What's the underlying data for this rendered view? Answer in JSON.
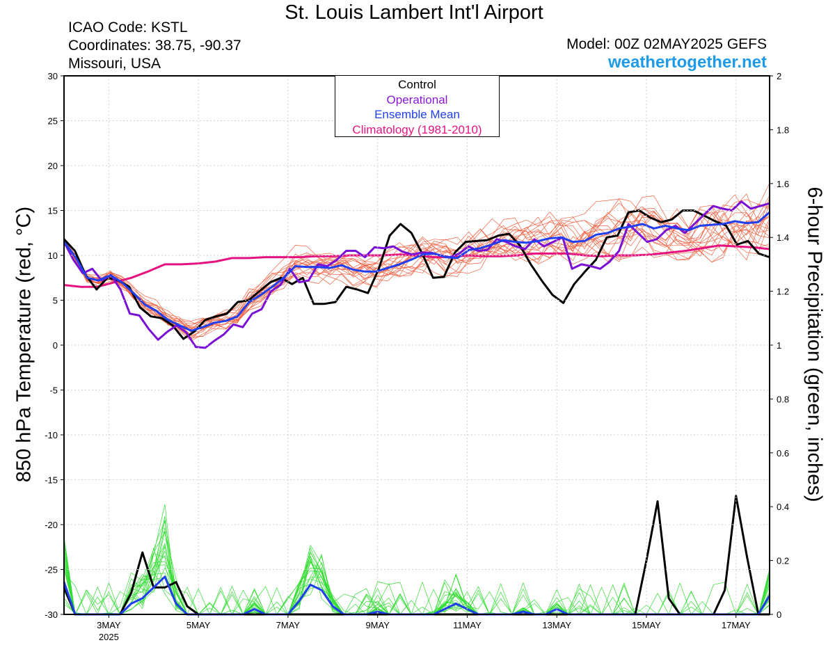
{
  "header": {
    "title": "St. Louis Lambert Int'l Airport",
    "icao": "ICAO Code: KSTL",
    "coords": "Coordinates: 38.75, -90.37",
    "region": "Missouri, USA",
    "model": "Model: 00Z 02MAY2025 GEFS",
    "site": "weathertogether.net"
  },
  "chart_data": {
    "type": "line",
    "ylabel": "850 hPa Temperature (red, °C)",
    "y2label": "6-hour Precipitation (green, inches)",
    "ylim": [
      -30,
      30
    ],
    "y2lim": [
      0,
      2
    ],
    "yticks": [
      "30",
      "25",
      "20",
      "15",
      "10",
      "5",
      "0",
      "-5",
      "-10",
      "-15",
      "-20",
      "-25",
      "-30"
    ],
    "y2ticks": [
      "2",
      "1.8",
      "1.6",
      "1.4",
      "1.2",
      "1",
      "0.8",
      "0.6",
      "0.4",
      "0.2",
      "0"
    ],
    "xlim": [
      0,
      63
    ],
    "xticks": [
      {
        "x": 4,
        "label": "3MAY",
        "sub": "2025"
      },
      {
        "x": 12,
        "label": "5MAY"
      },
      {
        "x": 20,
        "label": "7MAY"
      },
      {
        "x": 28,
        "label": "9MAY"
      },
      {
        "x": 36,
        "label": "11MAY"
      },
      {
        "x": 44,
        "label": "13MAY"
      },
      {
        "x": 52,
        "label": "15MAY"
      },
      {
        "x": 60,
        "label": "17MAY"
      }
    ],
    "legend": [
      "Control",
      "Operational",
      "Ensemble Mean",
      "Climatology (1981-2010)"
    ],
    "colors": {
      "control": "#000000",
      "operational": "#7a10d6",
      "mean": "#1f3ff0",
      "climatology": "#e6127f",
      "members_temp": "#f06040",
      "members_precip": "#33dd33"
    },
    "series": {
      "control_temp": [
        11.8,
        10.5,
        7.8,
        6.2,
        7.5,
        7.2,
        6.5,
        4.2,
        3.2,
        3.0,
        2.2,
        0.7,
        1.5,
        2.8,
        3.2,
        3.5,
        4.8,
        5.0,
        6.0,
        7.0,
        7.5,
        6.8,
        7.5,
        4.6,
        4.6,
        4.8,
        6.5,
        6.2,
        5.8,
        8.5,
        12.2,
        13.5,
        12.5,
        10.2,
        7.5,
        7.6,
        10.3,
        11.5,
        11.6,
        11.7,
        12.2,
        12.4,
        11.1,
        9.0,
        7.2,
        5.6,
        4.7,
        6.8,
        8.2,
        9.5,
        12.0,
        12.2,
        14.8,
        15.0,
        14.2,
        13.7,
        14.0,
        15.0,
        15.0,
        14.4,
        13.8,
        13.3,
        11.2,
        11.6,
        10.2,
        9.8
      ],
      "operational_temp": [
        11.5,
        9.5,
        8.0,
        8.5,
        7.2,
        7.8,
        6.2,
        3.5,
        3.3,
        1.8,
        0.6,
        1.5,
        2.2,
        1.4,
        -0.2,
        -0.3,
        0.5,
        1.2,
        2.3,
        2.0,
        3.5,
        4.0,
        6.0,
        6.7,
        8.5,
        7.0,
        7.2,
        9.0,
        8.8,
        9.5,
        10.5,
        10.5,
        9.8,
        10.9,
        10.8,
        11.0,
        10.4,
        10.1,
        10.3,
        10.3,
        10.0,
        9.8,
        10.2,
        11.0,
        10.5,
        10.6,
        11.8,
        11.5,
        11.0,
        10.7,
        11.8,
        11.0,
        11.5,
        12.0,
        8.5,
        9.0,
        8.8,
        8.5,
        9.3,
        10.5,
        13.5,
        12.5,
        11.5,
        11.8,
        12.8,
        13.3,
        12.5,
        13.5,
        14.5,
        15.5,
        15.2,
        15.0,
        16.0,
        15.2,
        15.5,
        15.8
      ],
      "mean_temp": [
        11.5,
        9.8,
        7.5,
        7.2,
        7.8,
        7.0,
        5.8,
        4.5,
        3.8,
        2.8,
        2.2,
        1.6,
        2.0,
        2.5,
        2.7,
        3.2,
        4.8,
        5.6,
        6.5,
        7.5,
        8.8,
        8.7,
        8.7,
        8.6,
        8.9,
        8.4,
        8.2,
        8.2,
        8.6,
        9.0,
        9.5,
        10.1,
        10.2,
        9.8,
        9.7,
        10.6,
        10.8,
        11.2,
        11.7,
        11.5,
        11.4,
        11.6,
        11.9,
        12.0,
        11.5,
        11.6,
        12.3,
        12.5,
        13.0,
        13.2,
        13.5,
        13.0,
        13.3,
        13.0,
        12.8,
        13.3,
        13.4,
        13.5,
        13.8,
        13.6,
        13.7,
        14.8
      ],
      "climatology_temp": [
        6.7,
        6.5,
        6.5,
        7.0,
        7.5,
        8.2,
        9.0,
        9.0,
        9.1,
        9.3,
        9.7,
        9.7,
        9.8,
        9.8,
        9.8,
        9.9,
        9.9,
        10.0,
        10.0,
        10.0,
        10.1,
        10.0,
        9.8,
        9.8,
        10.0,
        9.9,
        9.9,
        10.0,
        10.2,
        10.2,
        10.2,
        10.0,
        9.9,
        10.0,
        10.0,
        10.1,
        10.3,
        10.5,
        10.8,
        11.1,
        11.0,
        10.9,
        10.7
      ],
      "control_precip": [
        0.1,
        0.0,
        0.0,
        0.0,
        0.0,
        0.0,
        0.08,
        0.23,
        0.1,
        0.1,
        0.12,
        0.03,
        0.0,
        0.0,
        0.0,
        0.0,
        0.0,
        0.0,
        0.0,
        0.0,
        0.0,
        0.0,
        0.0,
        0.0,
        0.0,
        0.0,
        0.0,
        0.0,
        0.0,
        0.0,
        0.0,
        0.0,
        0.0,
        0.0,
        0.0,
        0.0,
        0.0,
        0.0,
        0.0,
        0.0,
        0.0,
        0.0,
        0.0,
        0.0,
        0.0,
        0.0,
        0.0,
        0.0,
        0.0,
        0.0,
        0.0,
        0.0,
        0.0,
        0.0,
        0.0,
        0.0,
        0.0,
        0.0,
        0.0,
        0.0,
        0.0,
        0.0,
        0.0,
        0.0
      ],
      "mean_precip": [
        0.12,
        0.0,
        0.0,
        0.0,
        0.0,
        0.0,
        0.04,
        0.06,
        0.1,
        0.14,
        0.04,
        0.0,
        0.0,
        0.0,
        0.0,
        0.0,
        0.0,
        0.02,
        0.0,
        0.0,
        0.0,
        0.05,
        0.11,
        0.09,
        0.03,
        0.0,
        0.0,
        0.0,
        0.01,
        0.0,
        0.0,
        0.0,
        0.0,
        0.0,
        0.02,
        0.04,
        0.02,
        0.0,
        0.0,
        0.0,
        0.0,
        0.01,
        0.0,
        0.0,
        0.02,
        0.0,
        0.0,
        0.0,
        0.0,
        0.0,
        0.0,
        0.0,
        0.0,
        0.0,
        0.0,
        0.0,
        0.0,
        0.0,
        0.0,
        0.0,
        0.0,
        0.0,
        0.0,
        0.07
      ],
      "control_precip2": [
        0.0,
        0.0,
        0.0,
        0.0,
        0.0,
        0.0,
        0.0,
        0.0,
        0.0,
        0.0,
        0.0,
        0.0,
        0.0,
        0.0,
        0.0,
        0.0,
        0.0,
        0.0,
        0.0,
        0.0,
        0.0,
        0.0,
        0.0,
        0.0,
        0.0,
        0.0,
        0.0,
        0.0,
        0.0,
        0.0,
        0.0,
        0.0,
        0.0,
        0.0,
        0.0,
        0.0,
        0.0,
        0.0,
        0.0,
        0.0,
        0.0,
        0.0,
        0.0,
        0.0,
        0.0,
        0.0,
        0.0,
        0.0,
        0.0,
        0.0,
        0.0,
        0.0,
        0.2,
        0.42,
        0.06,
        0.0,
        0.0,
        0.0,
        0.0,
        0.09,
        0.44,
        0.21,
        0.0,
        0.0
      ]
    }
  }
}
